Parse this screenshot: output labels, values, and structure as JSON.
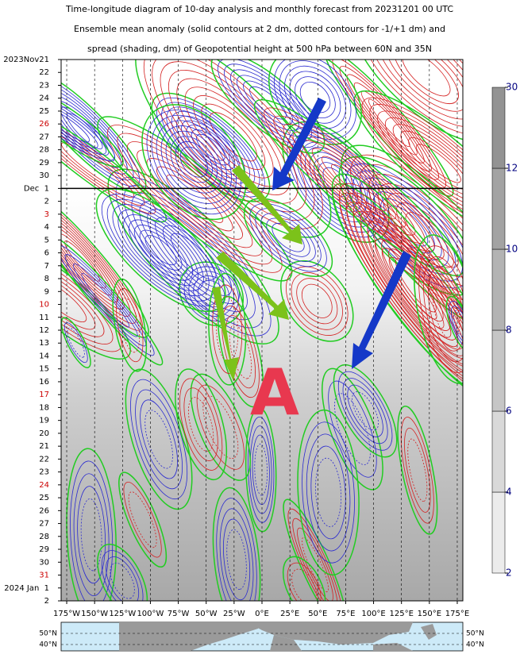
{
  "chart_data": {
    "type": "hovmoller",
    "title": [
      "Time-longitude diagram of 10-day analysis and monthly forecast from 20231201 00 UTC",
      "Ensemble mean anomaly (solid contours at 2 dm, dotted contours for -1/+1 dm) and",
      "spread (shading, dm) of Geopotential height at 500 hPa between 60N and 35N"
    ],
    "xlim": [
      -180,
      180
    ],
    "xticks": [
      {
        "value": -175,
        "label": "175°W"
      },
      {
        "value": -150,
        "label": "150°W"
      },
      {
        "value": -125,
        "label": "125°W"
      },
      {
        "value": -100,
        "label": "100°W"
      },
      {
        "value": -75,
        "label": "75°W"
      },
      {
        "value": -50,
        "label": "50°W"
      },
      {
        "value": -25,
        "label": "25°W"
      },
      {
        "value": 0,
        "label": "0°E"
      },
      {
        "value": 25,
        "label": "25°E"
      },
      {
        "value": 50,
        "label": "50°E"
      },
      {
        "value": 75,
        "label": "75°E"
      },
      {
        "value": 100,
        "label": "100°E"
      },
      {
        "value": 125,
        "label": "125°E"
      },
      {
        "value": 150,
        "label": "150°E"
      },
      {
        "value": 175,
        "label": "175°E"
      }
    ],
    "categories": [
      "2023Nov21",
      "22",
      "23",
      "24",
      "25",
      "26",
      "27",
      "28",
      "29",
      "30",
      "Dec  1",
      "2",
      "3",
      "4",
      "5",
      "6",
      "7",
      "8",
      "9",
      "10",
      "11",
      "12",
      "13",
      "14",
      "15",
      "16",
      "17",
      "18",
      "19",
      "20",
      "21",
      "22",
      "23",
      "24",
      "25",
      "26",
      "27",
      "28",
      "29",
      "30",
      "31",
      "2024 Jan  1",
      "2"
    ],
    "label_colors": [
      "#000",
      "#000",
      "#000",
      "#000",
      "#000",
      "#c00",
      "#000",
      "#000",
      "#000",
      "#000",
      "#000",
      "#000",
      "#c00",
      "#000",
      "#000",
      "#000",
      "#000",
      "#000",
      "#000",
      "#c00",
      "#000",
      "#000",
      "#000",
      "#000",
      "#000",
      "#000",
      "#c00",
      "#000",
      "#000",
      "#000",
      "#000",
      "#000",
      "#000",
      "#c00",
      "#000",
      "#000",
      "#000",
      "#000",
      "#000",
      "#000",
      "#c00",
      "#000",
      "#000"
    ],
    "grid": true,
    "annotation": "A",
    "colorbar": {
      "levels": [
        2,
        4,
        6,
        8,
        10,
        12,
        30
      ],
      "colors": [
        "#ececec",
        "#d9d9d9",
        "#c6c6c6",
        "#b3b3b3",
        "#a3a3a3",
        "#939393"
      ]
    },
    "map": {
      "lat_labels": [
        "50°N",
        "40°N"
      ]
    }
  }
}
